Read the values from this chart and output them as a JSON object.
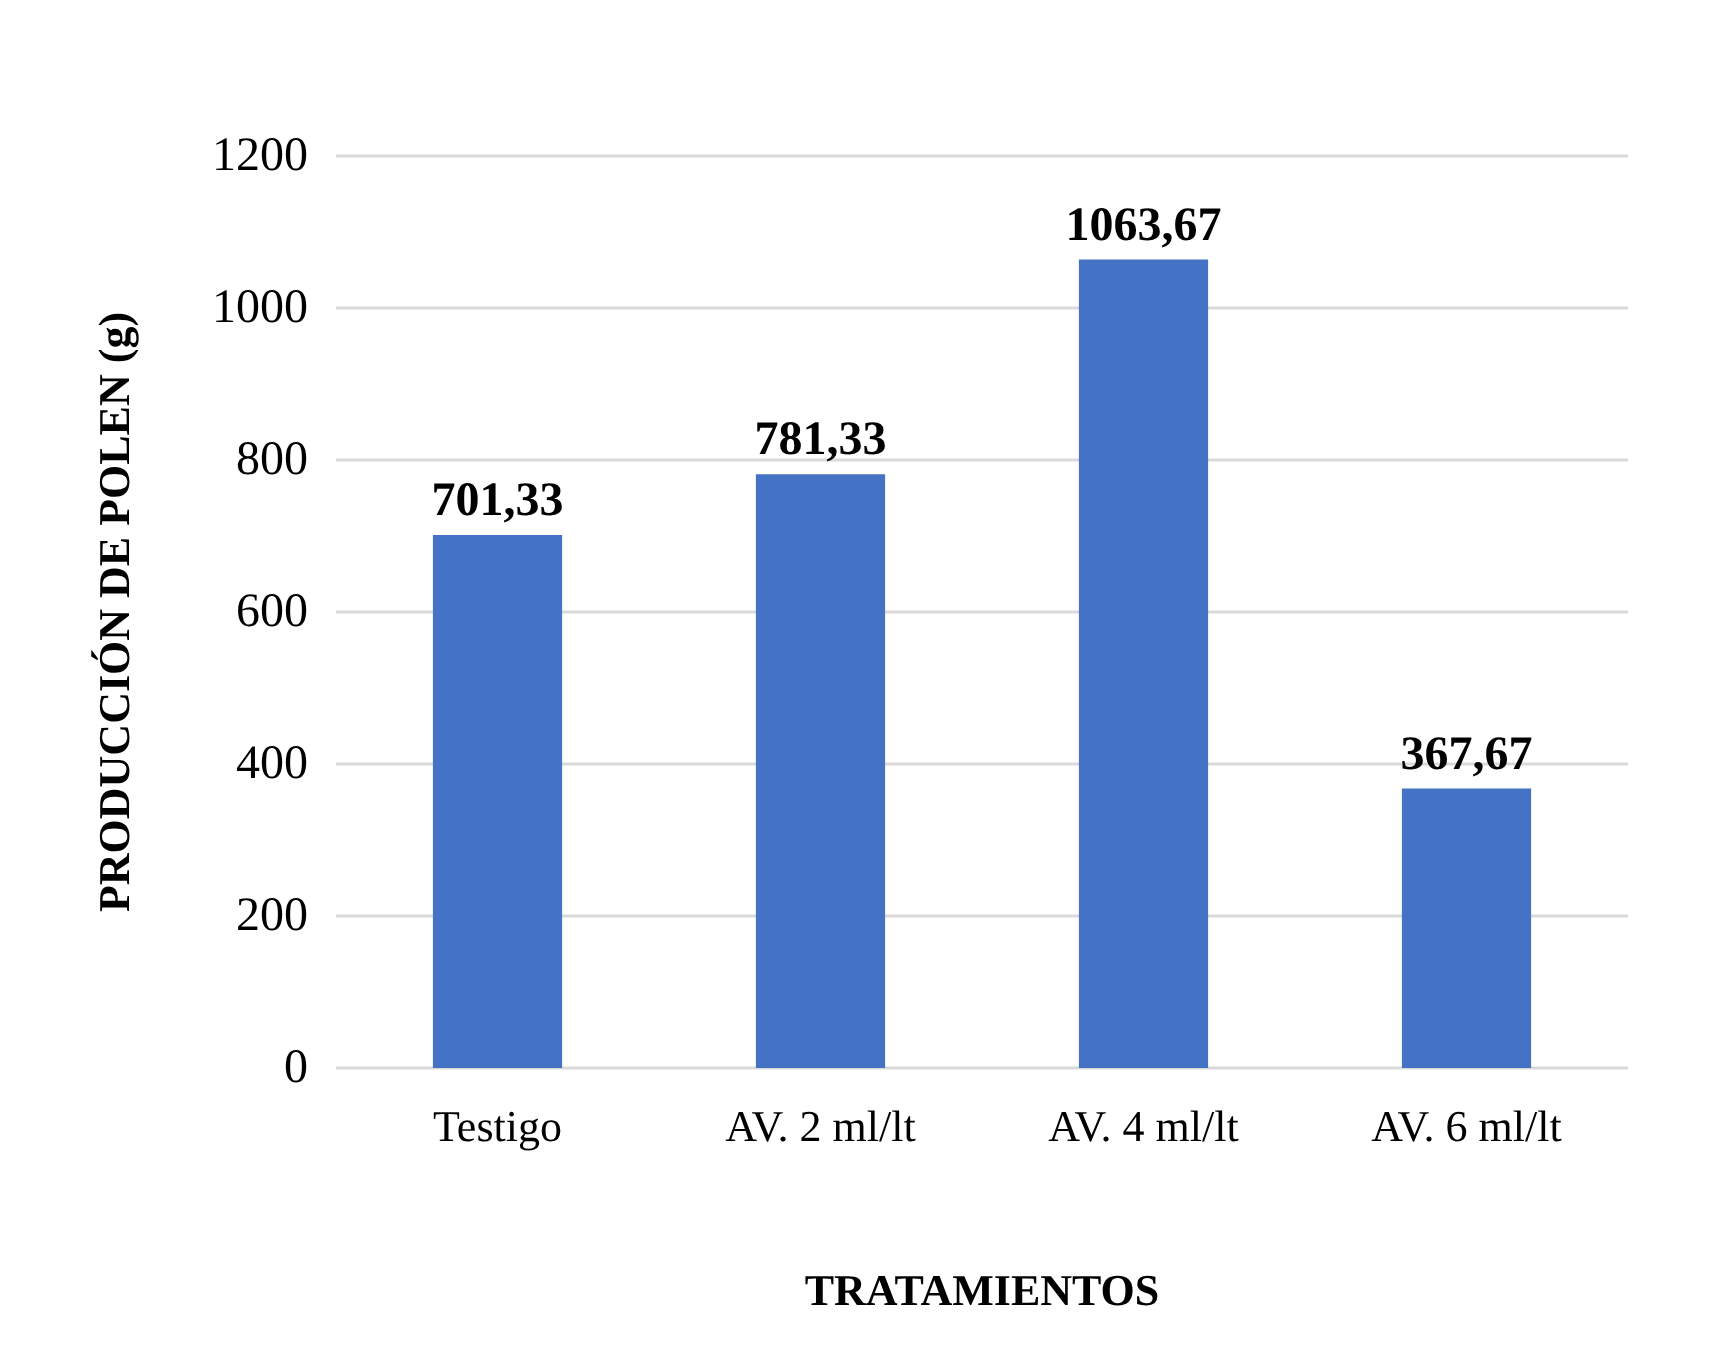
{
  "chart_data": {
    "type": "bar",
    "xlabel": "TRATAMIENTOS",
    "ylabel": "PRODUCCIÓN DE POLEN (g)",
    "categories": [
      "Testigo",
      "AV. 2 ml/lt",
      "AV. 4 ml/lt",
      "AV. 6 ml/lt"
    ],
    "values": [
      701.33,
      781.33,
      1063.67,
      367.67
    ],
    "value_labels": [
      "701,33",
      "781,33",
      "1063,67",
      "367,67"
    ],
    "color": "#4472c4",
    "ylim": [
      0,
      1200
    ],
    "yticks": [
      0,
      200,
      400,
      600,
      800,
      1000,
      1200
    ],
    "grid": "y"
  }
}
